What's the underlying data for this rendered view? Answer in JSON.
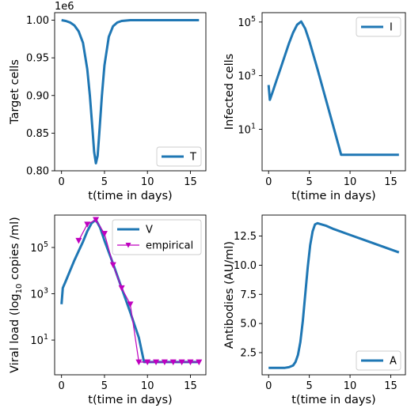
{
  "figure": {
    "colors": {
      "model": "#1f77b4",
      "empirical": "#bf00bf"
    }
  },
  "chart_data": [
    {
      "id": "target",
      "type": "line",
      "xlabel": "t(time in days)",
      "ylabel": "Target cells",
      "offset_text": "1e6",
      "x_ticks": [
        0,
        5,
        10,
        15
      ],
      "y_ticks": [
        0.8,
        0.85,
        0.9,
        0.95,
        1.0
      ],
      "y_tick_labels": [
        "0.80",
        "0.85",
        "0.90",
        "0.95",
        "1.00"
      ],
      "xlim": [
        -0.8,
        16.8
      ],
      "ylim": [
        0.8,
        1.01
      ],
      "yscale": "linear",
      "legend": "bottom-right",
      "series": [
        {
          "name": "T",
          "x": [
            0,
            0.5,
            1,
            1.5,
            2,
            2.5,
            3,
            3.3,
            3.6,
            3.8,
            4,
            4.2,
            4.4,
            4.7,
            5,
            5.5,
            6,
            6.5,
            7,
            8,
            10,
            12,
            14,
            16
          ],
          "y": [
            1.0,
            0.999,
            0.997,
            0.993,
            0.985,
            0.97,
            0.935,
            0.9,
            0.855,
            0.825,
            0.81,
            0.82,
            0.85,
            0.9,
            0.94,
            0.978,
            0.992,
            0.997,
            0.999,
            1.0,
            1.0,
            1.0,
            1.0,
            1.0
          ]
        }
      ]
    },
    {
      "id": "infected",
      "type": "line",
      "xlabel": "t(time in days)",
      "ylabel": "Infected cells",
      "x_ticks": [
        0,
        5,
        10,
        15
      ],
      "y_ticks": [
        1,
        3,
        5
      ],
      "y_tick_labels_base": "10",
      "y_tick_labels_exp": [
        "1",
        "3",
        "5"
      ],
      "xlim": [
        -0.8,
        16.8
      ],
      "ylim_log10": [
        -0.55,
        5.35
      ],
      "yscale": "log",
      "legend": "top-right",
      "series": [
        {
          "name": "I",
          "x": [
            0,
            0.15,
            0.5,
            1,
            1.5,
            2,
            2.5,
            3,
            3.5,
            4,
            4.5,
            5,
            6,
            7,
            8,
            8.9,
            10,
            12,
            14,
            16
          ],
          "y_log10": [
            2.65,
            2.1,
            2.4,
            2.85,
            3.3,
            3.75,
            4.2,
            4.6,
            4.9,
            5.02,
            4.75,
            4.3,
            3.25,
            2.15,
            1.05,
            0.05,
            0.05,
            0.05,
            0.05,
            0.05
          ]
        }
      ]
    },
    {
      "id": "viral",
      "type": "line",
      "xlabel": "t(time in days)",
      "ylabel_pre": "Viral load (log",
      "ylabel_sub": "10",
      "ylabel_post": " copies /ml)",
      "x_ticks": [
        0,
        5,
        10,
        15
      ],
      "y_ticks": [
        1,
        3,
        5
      ],
      "y_tick_labels_base": "10",
      "y_tick_labels_exp": [
        "1",
        "3",
        "5"
      ],
      "xlim": [
        -0.8,
        16.8
      ],
      "ylim_log10": [
        -0.5,
        6.4
      ],
      "yscale": "log",
      "legend": "top-right",
      "series": [
        {
          "name": "V",
          "style": "line",
          "x": [
            0,
            0.15,
            0.5,
            1,
            1.5,
            2,
            2.5,
            3,
            3.5,
            4,
            4.5,
            5,
            6,
            7,
            8,
            9,
            9.6,
            10,
            12,
            14,
            16
          ],
          "y_log10": [
            2.55,
            3.25,
            3.55,
            4.0,
            4.45,
            4.85,
            5.25,
            5.7,
            6.05,
            6.2,
            5.85,
            5.3,
            4.3,
            3.25,
            2.2,
            1.1,
            0.05,
            0.05,
            0.05,
            0.05,
            0.05
          ]
        },
        {
          "name": "empirical",
          "style": "marker-line",
          "x": [
            2,
            3,
            4,
            5,
            6,
            7,
            8,
            9,
            10,
            11,
            12,
            13,
            14,
            15,
            16
          ],
          "y_log10": [
            5.3,
            6.0,
            6.2,
            5.6,
            4.25,
            3.25,
            2.55,
            0.05,
            0.05,
            0.05,
            0.05,
            0.05,
            0.05,
            0.05,
            0.05
          ]
        }
      ]
    },
    {
      "id": "antibodies",
      "type": "line",
      "xlabel": "t(time in days)",
      "ylabel": "Antibodies (AU/ml)",
      "x_ticks": [
        0,
        5,
        10,
        15
      ],
      "y_ticks": [
        2.5,
        5.0,
        7.5,
        10.0,
        12.5
      ],
      "y_tick_labels": [
        "2.5",
        "5.0",
        "7.5",
        "10.0",
        "12.5"
      ],
      "xlim": [
        -0.8,
        16.8
      ],
      "ylim": [
        0.6,
        14.3
      ],
      "yscale": "linear",
      "legend": "bottom-right",
      "series": [
        {
          "name": "A",
          "x": [
            0,
            1,
            2,
            2.5,
            3,
            3.3,
            3.6,
            3.9,
            4.2,
            4.5,
            4.8,
            5.1,
            5.4,
            5.7,
            6,
            7,
            8,
            10,
            12,
            14,
            16
          ],
          "y": [
            1.2,
            1.2,
            1.2,
            1.25,
            1.4,
            1.7,
            2.3,
            3.4,
            5.2,
            7.5,
            9.8,
            11.7,
            12.9,
            13.5,
            13.6,
            13.4,
            13.1,
            12.6,
            12.1,
            11.6,
            11.1
          ]
        }
      ]
    }
  ]
}
